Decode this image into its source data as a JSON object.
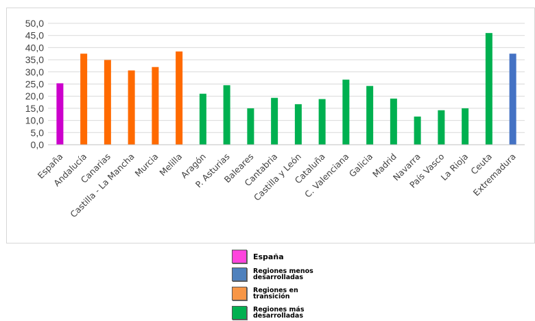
{
  "chart_data": {
    "type": "bar",
    "title": "",
    "xlabel": "",
    "ylabel": "",
    "ylim": [
      0,
      50
    ],
    "y_ticks": [
      "0,0",
      "5,0",
      "10,0",
      "15,0",
      "20,0",
      "25,0",
      "30,0",
      "35,0",
      "40,0",
      "45,0",
      "50,0"
    ],
    "grid": true,
    "legend_position": "bottom",
    "categories": [
      "España",
      "Andalucía",
      "Canarias",
      "Castilla - La Mancha",
      "Murcia",
      "Melilla",
      "Aragón",
      "P. Asturias",
      "Baleares",
      "Cantabria",
      "Castilla y León",
      "Cataluña",
      "C. Valenciana",
      "Galicia",
      "Madrid",
      "Navarra",
      "País Vasco",
      "La Rioja",
      "Ceuta",
      "Extremadura"
    ],
    "values": [
      25.3,
      37.5,
      34.9,
      30.6,
      32.0,
      38.4,
      21.0,
      24.5,
      15.0,
      19.3,
      16.7,
      18.8,
      26.8,
      24.2,
      19.0,
      11.6,
      14.2,
      15.0,
      46.0,
      37.5
    ],
    "groups": [
      "espana",
      "transicion",
      "transicion",
      "transicion",
      "transicion",
      "transicion",
      "mas",
      "mas",
      "mas",
      "mas",
      "mas",
      "mas",
      "mas",
      "mas",
      "mas",
      "mas",
      "mas",
      "mas",
      "mas",
      "menos"
    ],
    "group_colors": {
      "espana": "#cc00cc",
      "menos": "#4472c4",
      "transicion": "#ff6a00",
      "mas": "#00b050"
    }
  },
  "legend": [
    {
      "key": "espana",
      "label": "España",
      "color": "#ff44dd"
    },
    {
      "key": "menos",
      "label": "Regiones menos desarrolladas",
      "color": "#4f81bd"
    },
    {
      "key": "transicion",
      "label": "Regiones en transición",
      "color": "#f79646"
    },
    {
      "key": "mas",
      "label": "Regiones más desarrolladas",
      "color": "#00b050"
    }
  ]
}
